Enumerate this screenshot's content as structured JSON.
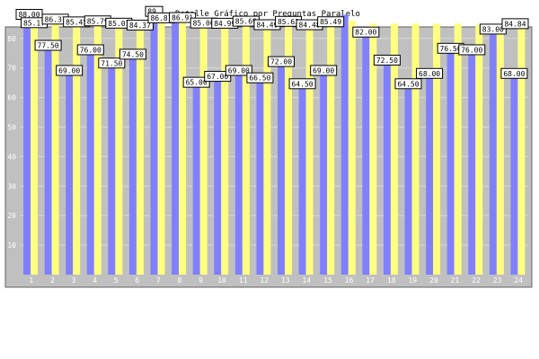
{
  "chart_data": {
    "type": "bar",
    "title": "Detalle Gráfico por Preguntas Paralelo",
    "xlabel": "",
    "ylabel": "",
    "ylim": [
      0,
      100
    ],
    "yticks": [
      10,
      20,
      30,
      40,
      50,
      60,
      70,
      80
    ],
    "grid": true,
    "categories": [
      "1",
      "2",
      "3",
      "4",
      "5",
      "6",
      "7",
      "8",
      "9",
      "10",
      "11",
      "12",
      "13",
      "14",
      "15",
      "16",
      "17",
      "18",
      "19",
      "20",
      "21",
      "22",
      "23",
      "24"
    ],
    "series": [
      {
        "values": [
          88.0,
          77.5,
          69.0,
          76.0,
          71.5,
          74.5,
          89.0,
          88.0,
          65.0,
          67.0,
          69.0,
          66.5,
          72.0,
          64.5,
          69.0,
          88.0,
          82.0,
          72.5,
          64.5,
          68.0,
          76.5,
          76.0,
          83.0,
          68.0
        ],
        "labels": [
          "88.00",
          "77.50",
          "69.00",
          "76.00",
          "71.50",
          "74.50",
          "89.",
          "",
          "65.00",
          "67.00",
          "69.00",
          "66.50",
          "72.00",
          "64.50",
          "69.00",
          "",
          "82.00",
          "72.50",
          "64.50",
          "68.00",
          "76.50",
          "76.00",
          "83.00",
          "68.00"
        ]
      },
      {
        "values": [
          85.17,
          86.37,
          85.45,
          85.79,
          85.01,
          84.37,
          86.81,
          86.91,
          85.06,
          84.99,
          85.69,
          84.49,
          85.63,
          84.48,
          85.49,
          86.0,
          85.0,
          85.0,
          84.98,
          84.98,
          85.0,
          84.6,
          84.6,
          84.84
        ],
        "labels": [
          "85.17",
          "86.37",
          "85.45",
          "85.79",
          "85.01",
          "84.37",
          "86.81",
          "86.91",
          "85.06",
          "84.99",
          "85.69",
          "84.49",
          "85.63",
          "84.48",
          "85.49",
          "",
          "",
          "",
          "",
          "",
          "",
          "",
          "",
          "84.84"
        ]
      }
    ],
    "colors": {
      "series_1": "#8080ff",
      "series_2": "#ffff80",
      "plot_background": "#c0c0c0",
      "gridline": "#d8d8d8",
      "tick_text": "#ffffff"
    }
  }
}
